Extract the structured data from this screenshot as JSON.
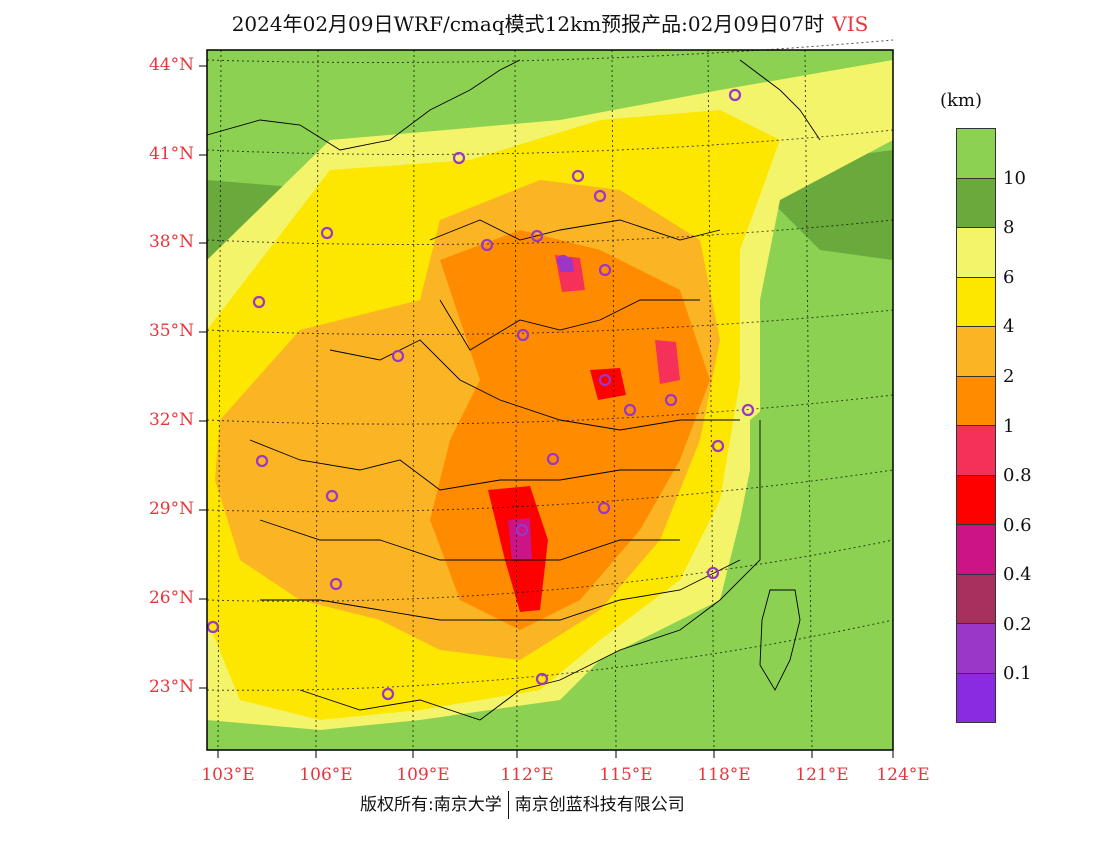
{
  "title": {
    "text": "2024年02月09日WRF/cmaq模式12km预报产品:02月09日07时",
    "variable": "VIS"
  },
  "axes": {
    "lat_labels": [
      "44°N",
      "41°N",
      "38°N",
      "35°N",
      "32°N",
      "29°N",
      "26°N",
      "23°N"
    ],
    "lon_labels": [
      "103°E",
      "106°E",
      "109°E",
      "112°E",
      "115°E",
      "118°E",
      "121°E",
      "124°E"
    ]
  },
  "legend": {
    "unit": "(km)",
    "colors": [
      "#8cd152",
      "#6aaa3c",
      "#f4f46a",
      "#fde600",
      "#fbb524",
      "#ff8c00",
      "#f5315a",
      "#ff0000",
      "#cc1486",
      "#a8305f",
      "#9a36c8",
      "#8a2be2"
    ],
    "labels": [
      "10",
      "8",
      "6",
      "4",
      "2",
      "1",
      "0.8",
      "0.6",
      "0.4",
      "0.2",
      "0.1"
    ]
  },
  "footer": {
    "copyright": "版权所有:南京大学",
    "company": "南京创蓝科技有限公司"
  },
  "map_colors": {
    "frame": "#000000",
    "label": "#e8343b",
    "marker": "#9a36c8"
  }
}
